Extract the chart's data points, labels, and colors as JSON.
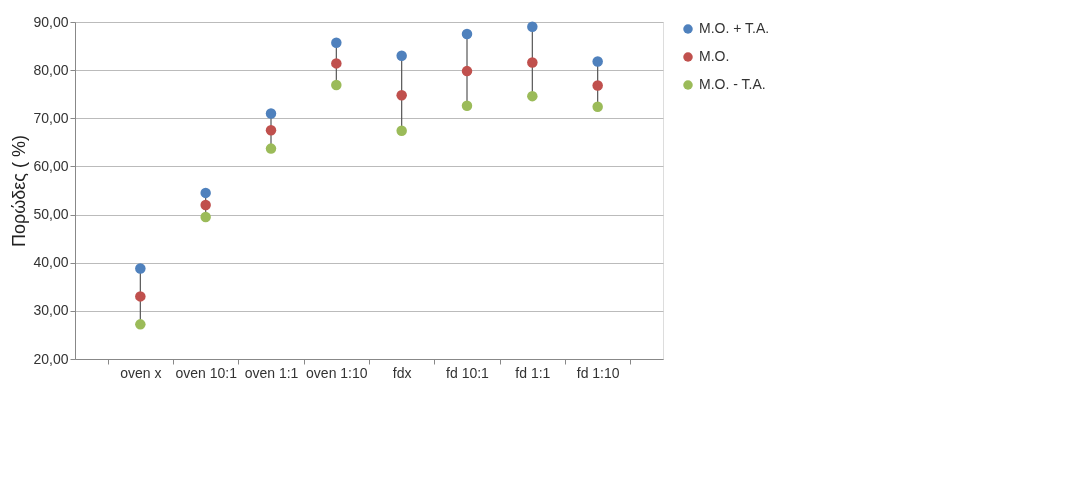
{
  "chart_data": {
    "type": "scatter",
    "ylabel": "Πορώδες ( %)",
    "categories": [
      "oven x",
      "oven 10:1",
      "oven 1:1",
      "oven 1:10",
      "fdx",
      "fd 10:1",
      "fd 1:1",
      "fd 1:10"
    ],
    "series": [
      {
        "name": "M.O. + T.A.",
        "color": "#4f81bd",
        "values": [
          38.8,
          54.5,
          71.0,
          85.7,
          83.0,
          87.5,
          89.0,
          81.8
        ]
      },
      {
        "name": "M.O.",
        "color": "#c0504d",
        "values": [
          33.0,
          52.0,
          67.5,
          81.4,
          74.8,
          79.8,
          81.6,
          76.8
        ]
      },
      {
        "name": "M.O. - T.A.",
        "color": "#9bbb59",
        "values": [
          27.2,
          49.5,
          63.7,
          76.9,
          67.4,
          72.6,
          74.6,
          72.4
        ]
      }
    ],
    "ylim": [
      20,
      90
    ],
    "yticks": [
      {
        "value": 20,
        "label": "20,00"
      },
      {
        "value": 30,
        "label": "30,00"
      },
      {
        "value": 40,
        "label": "40,00"
      },
      {
        "value": 50,
        "label": "50,00"
      },
      {
        "value": 60,
        "label": "60,00"
      },
      {
        "value": 70,
        "label": "70,00"
      },
      {
        "value": 80,
        "label": "80,00"
      },
      {
        "value": 90,
        "label": "90,00"
      }
    ],
    "grid": "y",
    "legend": "right",
    "marker": "circle"
  }
}
